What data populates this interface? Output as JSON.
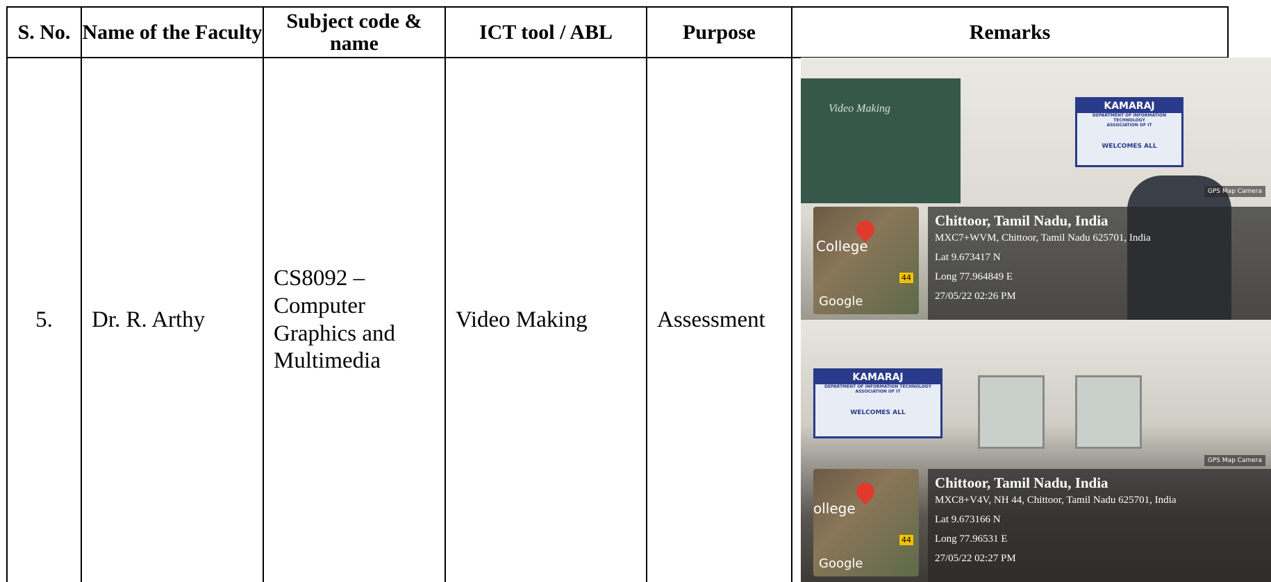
{
  "table": {
    "headers": [
      "S. No.",
      "Name of the Faculty",
      "Subject code & name",
      "ICT tool / ABL",
      "Purpose",
      "Remarks"
    ],
    "rows": [
      [
        "5.",
        "Dr. R. Arthy",
        "CS8092 – Computer Graphics and Multimedia",
        "Video Making",
        "Assessment"
      ]
    ]
  },
  "photos": [
    {
      "board_text": "Video Making",
      "banner_title": "KAMARAJ",
      "banner_dept": "DEPARTMENT OF INFORMATION TECHNOLOGY",
      "banner_assoc": "ASSOCIATION OF IT",
      "banner_welcome": "WELCOMES ALL",
      "app": "GPS Map Camera",
      "map_label": "College",
      "map_brand": "Google",
      "road": "44",
      "place": "Chittoor, Tamil Nadu, India",
      "address": "MXC7+WVM, Chittoor, Tamil Nadu 625701, India",
      "lat": "Lat 9.673417 N",
      "long": "Long 77.964849 E",
      "time": "27/05/22 02:26 PM"
    },
    {
      "banner_title": "KAMARAJ",
      "banner_dept": "DEPARTMENT OF INFORMATION TECHNOLOGY",
      "banner_assoc": "ASSOCIATION OF IT",
      "banner_welcome": "WELCOMES ALL",
      "app": "GPS Map Camera",
      "map_label": "ollege",
      "map_brand": "Google",
      "road": "44",
      "place": "Chittoor, Tamil Nadu, India",
      "address": "MXC8+V4V, NH 44, Chittoor, Tamil Nadu 625701, India",
      "lat": "Lat 9.673166 N",
      "long": "Long 77.96531 E",
      "time": "27/05/22 02:27 PM"
    }
  ]
}
